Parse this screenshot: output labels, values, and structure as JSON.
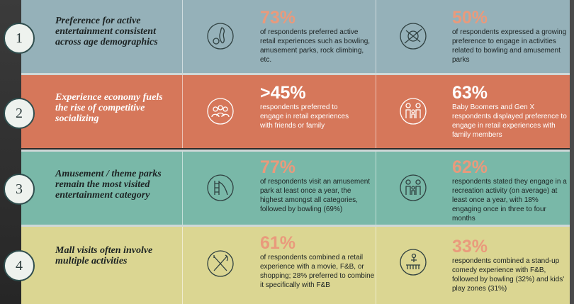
{
  "rows": [
    {
      "number": "1",
      "title": "Preference for active entertainment consistent across age demographics",
      "stats": [
        {
          "icon": "bowling-icon",
          "value": "73%",
          "text": "of respondents preferred active retail experiences such as bowling, amusement parks, rock climbing, etc."
        },
        {
          "icon": "swing-ride-icon",
          "value": "50%",
          "text": "of respondents expressed a growing preference to engage in activities related to bowling and amusement parks"
        }
      ]
    },
    {
      "number": "2",
      "title": "Experience economy fuels the rise of competitive socializing",
      "stats": [
        {
          "icon": "group-icon",
          "value": ">45%",
          "text": "respondents preferred to engage in retail experiences with friends or family"
        },
        {
          "icon": "family-icon",
          "value": "63%",
          "text": "Baby Boomers and Gen X respondents displayed preference to engage in retail experiences with family members"
        }
      ]
    },
    {
      "number": "3",
      "title": "Amusement / theme parks remain the most visited entertainment category",
      "stats": [
        {
          "icon": "slide-icon",
          "value": "77%",
          "text": "of respondents visit an amusement park at least once a year, the highest amongst all categories, followed by bowling (69%)"
        },
        {
          "icon": "family-icon",
          "value": "62%",
          "text": "respondents stated they engage in a recreation activity (on average) at least once a year, with 18% engaging once in three to four months"
        }
      ]
    },
    {
      "number": "4",
      "title": "Mall visits often involve multiple activities",
      "stats": [
        {
          "icon": "fork-knife-icon",
          "value": "61%",
          "text": "of respondents combined a retail experience with a movie, F&B, or shopping; 28% preferred to combine it specifically with F&B"
        },
        {
          "icon": "comedy-stage-icon",
          "value": "33%",
          "text": "respondents combined a stand-up comedy experience with F&B, followed by bowling (32%) and kids' play zones (31%)"
        }
      ]
    }
  ]
}
